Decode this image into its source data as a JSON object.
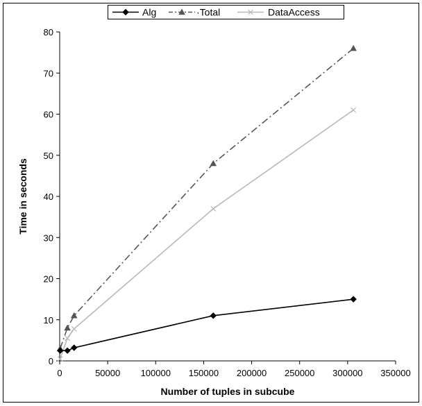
{
  "chart_data": {
    "type": "line",
    "title": "",
    "xlabel": "Number of tuples in subcube",
    "ylabel": "Time in seconds",
    "xlim": [
      0,
      350000
    ],
    "ylim": [
      0,
      80
    ],
    "x_ticks": [
      0,
      50000,
      100000,
      150000,
      200000,
      250000,
      300000,
      350000
    ],
    "x_tick_labels": [
      "0",
      "50000",
      "100000",
      "150000",
      "200000",
      "250000",
      "300000",
      "350000"
    ],
    "y_ticks": [
      0,
      10,
      20,
      30,
      40,
      50,
      60,
      70,
      80
    ],
    "y_tick_labels": [
      "0",
      "10",
      "20",
      "30",
      "40",
      "50",
      "60",
      "70",
      "80"
    ],
    "grid": false,
    "legend_position": "top-center",
    "series": [
      {
        "name": "Alg",
        "color": "#000000",
        "line_style": "solid",
        "marker": "diamond",
        "points": [
          [
            500,
            2.5
          ],
          [
            8000,
            2.5
          ],
          [
            15000,
            3.2
          ],
          [
            160000,
            11
          ],
          [
            306000,
            15
          ]
        ]
      },
      {
        "name": "Total",
        "legend_label": "·Total",
        "color": "#555555",
        "line_style": "dash-dot",
        "marker": "triangle",
        "points": [
          [
            500,
            3
          ],
          [
            8000,
            8
          ],
          [
            15000,
            11
          ],
          [
            160000,
            48
          ],
          [
            306000,
            76
          ]
        ]
      },
      {
        "name": "DataAccess",
        "color": "#b8b8b8",
        "line_style": "solid",
        "marker": "x",
        "points": [
          [
            500,
            0.5
          ],
          [
            8000,
            5.5
          ],
          [
            15000,
            7.8
          ],
          [
            160000,
            37
          ],
          [
            306000,
            61
          ]
        ]
      }
    ]
  }
}
